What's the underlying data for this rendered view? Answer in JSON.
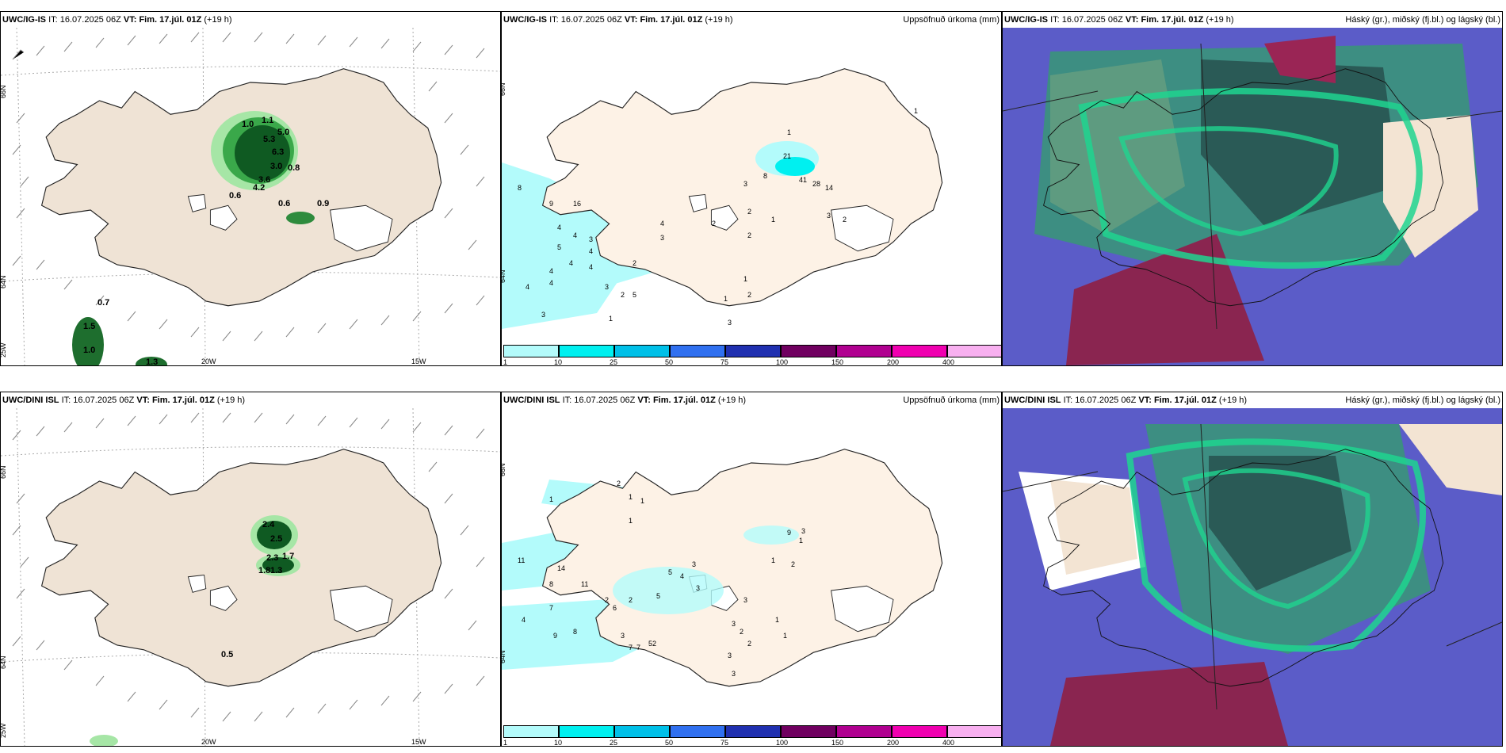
{
  "panels": [
    {
      "model": "UWC/IG-IS",
      "it_prefix": "IT:",
      "it": "16.07.2025 06Z",
      "vt_prefix": "VT:",
      "vt": "Fim. 17.júl. 01Z",
      "lead": "(+19 h)",
      "right": ""
    },
    {
      "model": "UWC/IG-IS",
      "it_prefix": "IT:",
      "it": "16.07.2025 06Z",
      "vt_prefix": "VT:",
      "vt": "Fim. 17.júl. 01Z",
      "lead": "(+19 h)",
      "right": "Uppsöfnuð úrkoma (mm)"
    },
    {
      "model": "UWC/IG-IS",
      "it_prefix": "IT:",
      "it": "16.07.2025 06Z",
      "vt_prefix": "VT:",
      "vt": "Fim. 17.júl. 01Z",
      "lead": "(+19 h)",
      "right": "Háský (gr.), miðský (fj.bl.) og lágský (bl.)"
    },
    {
      "model": "UWC/DINI ISL",
      "it_prefix": "IT:",
      "it": "16.07.2025 06Z",
      "vt_prefix": "VT:",
      "vt": "Fim. 17.júl. 01Z",
      "lead": "(+19 h)",
      "right": ""
    },
    {
      "model": "UWC/DINI ISL",
      "it_prefix": "IT:",
      "it": "16.07.2025 06Z",
      "vt_prefix": "VT:",
      "vt": "Fim. 17.júl. 01Z",
      "lead": "(+19 h)",
      "right": "Uppsöfnuð úrkoma (mm)"
    },
    {
      "model": "UWC/DINI ISL",
      "it_prefix": "IT:",
      "it": "16.07.2025 06Z",
      "vt_prefix": "VT:",
      "vt": "Fim. 17.júl. 01Z",
      "lead": "(+19 h)",
      "right": "Háský (gr.), miðský (fj.bl.) og lágský (bl.)"
    }
  ],
  "axes": {
    "lat_66": "66N",
    "lat_64": "64N",
    "lon_25": "25W",
    "lon_20": "20W",
    "lon_15": "15W"
  },
  "colorbar": {
    "ticks": [
      "1",
      "10",
      "25",
      "50",
      "75",
      "100",
      "150",
      "200",
      "400"
    ],
    "colors": [
      "#b3fbfb",
      "#00f0f0",
      "#00c0e8",
      "#3070f0",
      "#2030b0",
      "#700060",
      "#b00090",
      "#f000b0",
      "#f8b0f0"
    ]
  },
  "map_top": {
    "green_labels": [
      "0.6",
      "1.0",
      "1.1",
      "5.3",
      "5.0",
      "6.3",
      "3.0",
      "3.6",
      "4.2",
      "0.8",
      "0.6",
      "0.9",
      "0.7",
      "1.5",
      "1.0",
      "1.3"
    ],
    "precip_labels": [
      "8",
      "9",
      "16",
      "4",
      "4",
      "3",
      "4",
      "5",
      "4",
      "4",
      "4",
      "4",
      "4",
      "3",
      "3",
      "2",
      "2",
      "5",
      "1",
      "21",
      "8",
      "3",
      "41",
      "28",
      "14",
      "1",
      "2",
      "2",
      "1",
      "3",
      "2",
      "1",
      "2",
      "1",
      "2",
      "3",
      "1",
      "4",
      "3"
    ]
  },
  "map_bottom": {
    "green_labels": [
      "2.4",
      "2.5",
      "1.7",
      "2.3",
      "1.3",
      "1.8",
      "0.5"
    ],
    "precip_labels": [
      "1",
      "2",
      "1",
      "1",
      "1",
      "11",
      "14",
      "8",
      "11",
      "7",
      "4",
      "9",
      "8",
      "6",
      "3",
      "7",
      "7",
      "5",
      "5",
      "5",
      "4",
      "3",
      "3",
      "2",
      "2",
      "2",
      "1",
      "1",
      "9",
      "3",
      "2",
      "3",
      "3",
      "2",
      "1",
      "1",
      "3",
      "2",
      "3"
    ]
  }
}
